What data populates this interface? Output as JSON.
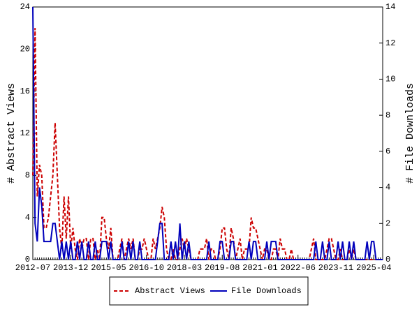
{
  "chart_data": {
    "type": "line",
    "x": [
      "2012-07",
      "2012-08",
      "2012-09",
      "2012-10",
      "2012-11",
      "2012-12",
      "2013-01",
      "2013-02",
      "2013-03",
      "2013-04",
      "2013-05",
      "2013-06",
      "2013-07",
      "2013-08",
      "2013-09",
      "2013-10",
      "2013-11",
      "2013-12",
      "2014-01",
      "2014-02",
      "2014-03",
      "2014-04",
      "2014-05",
      "2014-06",
      "2014-07",
      "2014-08",
      "2014-09",
      "2014-10",
      "2014-11",
      "2014-12",
      "2015-01",
      "2015-02",
      "2015-03",
      "2015-04",
      "2015-05",
      "2015-06",
      "2015-07",
      "2015-08",
      "2015-09",
      "2015-10",
      "2015-11",
      "2015-12",
      "2016-01",
      "2016-02",
      "2016-03",
      "2016-04",
      "2016-05",
      "2016-06",
      "2016-07",
      "2016-08",
      "2016-09",
      "2016-10",
      "2016-11",
      "2016-12",
      "2017-01",
      "2017-02",
      "2017-03",
      "2017-04",
      "2017-05",
      "2017-06",
      "2017-07",
      "2017-08",
      "2017-09",
      "2017-10",
      "2017-11",
      "2017-12",
      "2018-01",
      "2018-02",
      "2018-03",
      "2018-04",
      "2018-05",
      "2018-06",
      "2018-07",
      "2018-08",
      "2018-09",
      "2018-10",
      "2018-11",
      "2018-12",
      "2019-01",
      "2019-02",
      "2019-03",
      "2019-04",
      "2019-05",
      "2019-06",
      "2019-07",
      "2019-08",
      "2019-09",
      "2019-10",
      "2019-11",
      "2019-12",
      "2020-01",
      "2020-02",
      "2020-03",
      "2020-04",
      "2020-05",
      "2020-06",
      "2020-07",
      "2020-08",
      "2020-09",
      "2020-10",
      "2020-11",
      "2020-12",
      "2021-01",
      "2021-02",
      "2021-03",
      "2021-04",
      "2021-05",
      "2021-06",
      "2021-07",
      "2021-08",
      "2021-09",
      "2021-10",
      "2021-11",
      "2021-12",
      "2022-01",
      "2022-02",
      "2022-03",
      "2022-04",
      "2022-05",
      "2022-06",
      "2022-07",
      "2022-08",
      "2022-09",
      "2022-10",
      "2022-11",
      "2022-12",
      "2023-01",
      "2023-02",
      "2023-03",
      "2023-04",
      "2023-05",
      "2023-06",
      "2023-07",
      "2023-08",
      "2023-09",
      "2023-10",
      "2023-11",
      "2023-12",
      "2024-01",
      "2024-02",
      "2024-03",
      "2024-04",
      "2024-05",
      "2024-06",
      "2024-07",
      "2024-08",
      "2024-09",
      "2024-10",
      "2024-11",
      "2024-12",
      "2025-01",
      "2025-02",
      "2025-03",
      "2025-04",
      "2025-05",
      "2025-06",
      "2025-07",
      "2025-08"
    ],
    "series": [
      {
        "name": "Abstract Views",
        "color": "#cc0000",
        "dash": true,
        "values": [
          8,
          22,
          6,
          9,
          8,
          3,
          3,
          4,
          6,
          8,
          13,
          8,
          3,
          1,
          6,
          2,
          6,
          1,
          3,
          1,
          0,
          2,
          1,
          2,
          2,
          0,
          2,
          2,
          0,
          1,
          0,
          4,
          4,
          2,
          1,
          3,
          0,
          0,
          0,
          1,
          2,
          0,
          1,
          2,
          1,
          2,
          0,
          0,
          1,
          1,
          2,
          1,
          0,
          0,
          2,
          1,
          2,
          3,
          5,
          4,
          1,
          0,
          0,
          1,
          0,
          0,
          1,
          2,
          1,
          2,
          1,
          0,
          0,
          0,
          0,
          1,
          1,
          1,
          2,
          0,
          1,
          1,
          0,
          0,
          1,
          3,
          3,
          1,
          0,
          3,
          2,
          0,
          1,
          2,
          0,
          1,
          1,
          1,
          4,
          3,
          3,
          2,
          1,
          0,
          1,
          1,
          0,
          0,
          1,
          1,
          0,
          2,
          1,
          1,
          0,
          0,
          1,
          0,
          0,
          0,
          0,
          0,
          0,
          0,
          0,
          1,
          2,
          0,
          0,
          0,
          0,
          0,
          1,
          2,
          2,
          1,
          0,
          0,
          1,
          0,
          0,
          0,
          1,
          0,
          1,
          0,
          0,
          0,
          0,
          0,
          0,
          0,
          0,
          0,
          0,
          0,
          0,
          0
        ]
      },
      {
        "name": "File Downloads",
        "color": "#0000bb",
        "axis": "y2",
        "values": [
          14,
          2,
          1,
          4,
          3,
          1,
          1,
          1,
          1,
          2,
          2,
          1,
          0,
          1,
          0,
          1,
          0,
          1,
          0,
          0,
          1,
          0,
          1,
          0,
          0,
          1,
          0,
          0,
          1,
          0,
          0,
          1,
          1,
          1,
          0,
          1,
          0,
          0,
          0,
          0,
          1,
          0,
          0,
          1,
          0,
          1,
          0,
          0,
          1,
          0,
          0,
          0,
          0,
          0,
          0,
          0,
          1,
          2,
          2,
          0,
          0,
          0,
          1,
          0,
          1,
          0,
          2,
          0,
          1,
          0,
          1,
          0,
          0,
          0,
          0,
          0,
          0,
          0,
          0,
          1,
          0,
          0,
          0,
          0,
          1,
          1,
          0,
          0,
          0,
          1,
          1,
          0,
          0,
          0,
          0,
          0,
          0,
          1,
          0,
          1,
          1,
          0,
          0,
          0,
          0,
          1,
          0,
          1,
          1,
          1,
          0,
          0,
          0,
          0,
          0,
          0,
          0,
          0,
          0,
          0,
          0,
          0,
          0,
          0,
          0,
          0,
          0,
          1,
          0,
          0,
          1,
          0,
          0,
          1,
          0,
          0,
          0,
          1,
          0,
          1,
          0,
          0,
          1,
          0,
          1,
          0,
          0,
          0,
          0,
          0,
          1,
          0,
          1,
          1,
          0,
          0,
          0,
          0
        ]
      }
    ],
    "xticks": [
      "2012-07",
      "2013-12",
      "2015-05",
      "2016-10",
      "2018-03",
      "2019-08",
      "2021-01",
      "2022-06",
      "2023-11",
      "2025-04"
    ],
    "ylabel": "# Abstract Views",
    "y2label": "# File Downloads",
    "ylim": [
      0,
      24
    ],
    "yticks": [
      0,
      4,
      8,
      12,
      16,
      20,
      24
    ],
    "y2lim": [
      0,
      14
    ],
    "y2ticks": [
      0,
      2,
      4,
      6,
      8,
      10,
      12,
      14
    ]
  }
}
